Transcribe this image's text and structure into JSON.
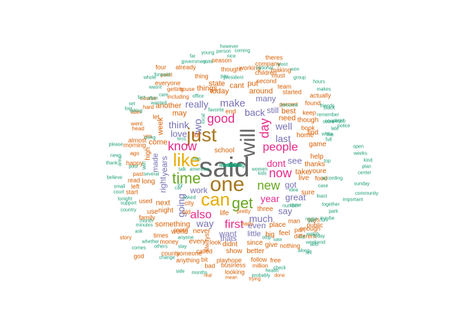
{
  "words": [
    {
      "text": "said",
      "c": "k"
    },
    {
      "text": "just",
      "c": "b"
    },
    {
      "text": "will",
      "c": "k"
    },
    {
      "text": "one",
      "c": "b"
    },
    {
      "text": "like",
      "c": "y"
    },
    {
      "text": "can",
      "c": "y"
    },
    {
      "text": "time",
      "c": "g"
    },
    {
      "text": "get",
      "c": "g"
    },
    {
      "text": "new",
      "c": "g"
    },
    {
      "text": "know",
      "c": "m"
    },
    {
      "text": "good",
      "c": "m"
    },
    {
      "text": "day",
      "c": "m"
    },
    {
      "text": "now",
      "c": "m"
    },
    {
      "text": "people",
      "c": "m"
    },
    {
      "text": "first",
      "c": "m"
    },
    {
      "text": "also",
      "c": "m"
    },
    {
      "text": "two",
      "c": "p"
    },
    {
      "text": "make",
      "c": "p"
    },
    {
      "text": "think",
      "c": "p"
    },
    {
      "text": "really",
      "c": "p"
    },
    {
      "text": "back",
      "c": "p"
    },
    {
      "text": "going",
      "c": "p"
    },
    {
      "text": "much",
      "c": "p"
    },
    {
      "text": "way",
      "c": "p"
    },
    {
      "text": "work",
      "c": "p"
    },
    {
      "text": "last",
      "c": "p"
    },
    {
      "text": "well",
      "c": "p"
    },
    {
      "text": "dont",
      "c": "m"
    },
    {
      "text": "year",
      "c": "m"
    },
    {
      "text": "see",
      "c": "p"
    },
    {
      "text": "great",
      "c": "p"
    },
    {
      "text": "say",
      "c": "p"
    },
    {
      "text": "got",
      "c": "p"
    },
    {
      "text": "love",
      "c": "p"
    },
    {
      "text": "years",
      "c": "p"
    },
    {
      "text": "right",
      "c": "p"
    },
    {
      "text": "made",
      "c": "p"
    },
    {
      "text": "want",
      "c": "p"
    },
    {
      "text": "even",
      "c": "p"
    },
    {
      "text": "many",
      "c": "p"
    },
    {
      "text": "still",
      "c": "p"
    },
    {
      "text": "thats",
      "c": "p"
    },
    {
      "text": "little",
      "c": "p"
    },
    {
      "text": "need",
      "c": "o"
    },
    {
      "text": "best",
      "c": "o"
    },
    {
      "text": "things",
      "c": "o"
    },
    {
      "text": "today",
      "c": "o"
    },
    {
      "text": "around",
      "c": "o"
    },
    {
      "text": "cant",
      "c": "o"
    },
    {
      "text": "state",
      "c": "o"
    },
    {
      "text": "put",
      "c": "o"
    },
    {
      "text": "another",
      "c": "o"
    },
    {
      "text": "may",
      "c": "o"
    },
    {
      "text": "come",
      "c": "o"
    },
    {
      "text": "week",
      "c": "o"
    },
    {
      "text": "next",
      "c": "o"
    },
    {
      "text": "night",
      "c": "o"
    },
    {
      "text": "something",
      "c": "o"
    },
    {
      "text": "world",
      "c": "o"
    },
    {
      "text": "never",
      "c": "o"
    },
    {
      "text": "every",
      "c": "o"
    },
    {
      "text": "didnt",
      "c": "o"
    },
    {
      "text": "since",
      "c": "o"
    },
    {
      "text": "give",
      "c": "o"
    },
    {
      "text": "show",
      "c": "o"
    },
    {
      "text": "better",
      "c": "o"
    },
    {
      "text": "three",
      "c": "o"
    },
    {
      "text": "place",
      "c": "o"
    },
    {
      "text": "feel",
      "c": "o"
    },
    {
      "text": "big",
      "c": "o"
    },
    {
      "text": "take",
      "c": "o"
    },
    {
      "text": "home",
      "c": "o"
    },
    {
      "text": "find",
      "c": "o"
    },
    {
      "text": "help",
      "c": "o"
    },
    {
      "text": "thanks",
      "c": "o"
    },
    {
      "text": "youre",
      "c": "o"
    },
    {
      "text": "live",
      "c": "o"
    },
    {
      "text": "sure",
      "c": "o"
    },
    {
      "text": "says",
      "c": "o"
    },
    {
      "text": "part",
      "c": "o"
    },
    {
      "text": "man",
      "c": "o"
    },
    {
      "text": "game",
      "c": "o"
    },
    {
      "text": "though",
      "c": "o"
    },
    {
      "text": "long",
      "c": "o"
    },
    {
      "text": "use",
      "c": "o"
    },
    {
      "text": "used",
      "c": "o"
    },
    {
      "text": "lot",
      "c": "o"
    },
    {
      "text": "life",
      "c": "o"
    },
    {
      "text": "school",
      "c": "o"
    },
    {
      "text": "end",
      "c": "o"
    },
    {
      "text": "city",
      "c": "o"
    },
    {
      "text": "look",
      "c": "o"
    },
    {
      "text": "money",
      "c": "o"
    },
    {
      "text": "times",
      "c": "o"
    },
    {
      "text": "room",
      "c": "o"
    },
    {
      "text": "keep",
      "c": "o"
    },
    {
      "text": "book",
      "c": "o"
    },
    {
      "text": "found",
      "c": "o"
    },
    {
      "text": "actually",
      "c": "o"
    },
    {
      "text": "started",
      "c": "o"
    },
    {
      "text": "team",
      "c": "o"
    },
    {
      "text": "second",
      "c": "o"
    },
    {
      "text": "high",
      "c": "o"
    },
    {
      "text": "always",
      "c": "o"
    },
    {
      "text": "old",
      "c": "o"
    },
    {
      "text": "let",
      "c": "o"
    },
    {
      "text": "play",
      "c": "o"
    },
    {
      "text": "bit",
      "c": "o"
    },
    {
      "text": "called",
      "c": "o"
    },
    {
      "text": "hope",
      "c": "o"
    },
    {
      "text": "looking",
      "c": "o"
    },
    {
      "text": "business",
      "c": "o"
    },
    {
      "text": "bad",
      "c": "o"
    },
    {
      "text": "anything",
      "c": "o"
    },
    {
      "text": "county",
      "c": "o"
    },
    {
      "text": "someone",
      "c": "o"
    },
    {
      "text": "follow",
      "c": "o"
    },
    {
      "text": "free",
      "c": "o"
    },
    {
      "text": "nothing",
      "c": "o"
    },
    {
      "text": "different",
      "c": "o"
    },
    {
      "text": "enough",
      "c": "o"
    },
    {
      "text": "public",
      "c": "o"
    },
    {
      "text": "food",
      "c": "o"
    },
    {
      "text": "read",
      "c": "o"
    },
    {
      "text": "family",
      "c": "o"
    },
    {
      "text": "four",
      "c": "o"
    },
    {
      "text": "already",
      "c": "o"
    },
    {
      "text": "thing",
      "c": "o"
    },
    {
      "text": "everyone",
      "c": "o"
    },
    {
      "text": "must",
      "c": "o"
    },
    {
      "text": "thought",
      "c": "o"
    },
    {
      "text": "season",
      "c": "o"
    },
    {
      "text": "working",
      "c": "o"
    },
    {
      "text": "children",
      "c": "o"
    },
    {
      "text": "making",
      "c": "o"
    },
    {
      "text": "company",
      "c": "o"
    },
    {
      "text": "theres",
      "c": "o"
    },
    {
      "text": "getting",
      "c": "o"
    },
    {
      "text": "house",
      "c": "o"
    },
    {
      "text": "including",
      "c": "o"
    },
    {
      "text": "almost",
      "c": "o"
    },
    {
      "text": "morning",
      "c": "o"
    },
    {
      "text": "happy",
      "c": "o"
    },
    {
      "text": "left",
      "c": "o"
    },
    {
      "text": "start",
      "c": "o"
    },
    {
      "text": "god",
      "c": "o"
    },
    {
      "text": "million",
      "c": "o"
    },
    {
      "text": "early",
      "c": "o"
    },
    {
      "text": "pretty",
      "c": "o"
    },
    {
      "text": "percent",
      "c": "o"
    },
    {
      "text": "point",
      "c": "o"
    },
    {
      "text": "course",
      "c": "o"
    },
    {
      "text": "later",
      "c": "o"
    },
    {
      "text": "went",
      "c": "o"
    },
    {
      "text": "hard",
      "c": "o"
    },
    {
      "text": "head",
      "c": "o"
    },
    {
      "text": "yes",
      "c": "o"
    },
    {
      "text": "ago",
      "c": "o"
    },
    {
      "text": "past",
      "c": "o"
    },
    {
      "text": "story",
      "c": "o"
    },
    {
      "text": "real",
      "c": "o"
    },
    {
      "text": "trying",
      "c": "o"
    },
    {
      "text": "done",
      "c": "o"
    },
    {
      "text": "mean",
      "c": "o"
    },
    {
      "text": "probably",
      "c": "t"
    },
    {
      "text": "health",
      "c": "t"
    },
    {
      "text": "check",
      "c": "t"
    },
    {
      "text": "months",
      "c": "t"
    },
    {
      "text": "side",
      "c": "t"
    },
    {
      "text": "stay",
      "c": "t"
    },
    {
      "text": "change",
      "c": "t"
    },
    {
      "text": "others",
      "c": "t"
    },
    {
      "text": "comes",
      "c": "t"
    },
    {
      "text": "whether",
      "c": "t"
    },
    {
      "text": "ask",
      "c": "t"
    },
    {
      "text": "minutes",
      "c": "t"
    },
    {
      "text": "month",
      "c": "t"
    },
    {
      "text": "country",
      "c": "t"
    },
    {
      "text": "tonight",
      "c": "t"
    },
    {
      "text": "support",
      "c": "t"
    },
    {
      "text": "court",
      "c": "t"
    },
    {
      "text": "small",
      "c": "t"
    },
    {
      "text": "believe",
      "c": "t"
    },
    {
      "text": "post",
      "c": "t"
    },
    {
      "text": "area",
      "c": "t"
    },
    {
      "text": "news",
      "c": "t"
    },
    {
      "text": "thank",
      "c": "t"
    },
    {
      "text": "please",
      "c": "t"
    },
    {
      "text": "several",
      "c": "t"
    },
    {
      "text": "talk",
      "c": "t"
    },
    {
      "text": "american",
      "c": "t"
    },
    {
      "text": "remember",
      "c": "t"
    },
    {
      "text": "couple",
      "c": "t"
    },
    {
      "text": "soon",
      "c": "t"
    },
    {
      "text": "late",
      "c": "t"
    },
    {
      "text": "full",
      "c": "t"
    },
    {
      "text": "white",
      "c": "t"
    },
    {
      "text": "open",
      "c": "t"
    },
    {
      "text": "weeks",
      "c": "t"
    },
    {
      "text": "kind",
      "c": "t"
    },
    {
      "text": "plan",
      "c": "t"
    },
    {
      "text": "center",
      "c": "t"
    },
    {
      "text": "top",
      "c": "t"
    },
    {
      "text": "sunday",
      "c": "t"
    },
    {
      "text": "community",
      "c": "t"
    },
    {
      "text": "important",
      "c": "t"
    },
    {
      "text": "together",
      "c": "t"
    },
    {
      "text": "park",
      "c": "t"
    },
    {
      "text": "fun",
      "c": "t"
    },
    {
      "text": "weekend",
      "c": "t"
    },
    {
      "text": "friday",
      "c": "t"
    },
    {
      "text": "maybe",
      "c": "t"
    },
    {
      "text": "least",
      "c": "t"
    },
    {
      "text": "according",
      "c": "t"
    },
    {
      "text": "case",
      "c": "t"
    },
    {
      "text": "five",
      "c": "t"
    },
    {
      "text": "black",
      "c": "t"
    },
    {
      "text": "job",
      "c": "t"
    },
    {
      "text": "police",
      "c": "t"
    },
    {
      "text": "water",
      "c": "t"
    },
    {
      "text": "friends",
      "c": "t"
    },
    {
      "text": "makes",
      "c": "t"
    },
    {
      "text": "hours",
      "c": "t"
    },
    {
      "text": "group",
      "c": "t"
    },
    {
      "text": "won",
      "c": "t"
    },
    {
      "text": "wont",
      "c": "t"
    },
    {
      "text": "national",
      "c": "t"
    },
    {
      "text": "coming",
      "c": "t"
    },
    {
      "text": "however",
      "c": "t"
    },
    {
      "text": "person",
      "c": "t"
    },
    {
      "text": "young",
      "c": "t"
    },
    {
      "text": "nice",
      "c": "t"
    },
    {
      "text": "far",
      "c": "t"
    },
    {
      "text": "government",
      "c": "t"
    },
    {
      "text": "quite",
      "c": "t"
    },
    {
      "text": "pay",
      "c": "t"
    },
    {
      "text": "president",
      "c": "t"
    },
    {
      "text": "forward",
      "c": "t"
    },
    {
      "text": "whole",
      "c": "t"
    },
    {
      "text": "wasnt",
      "c": "t"
    },
    {
      "text": "often",
      "c": "t"
    },
    {
      "text": "care",
      "c": "t"
    },
    {
      "text": "fact",
      "c": "t"
    },
    {
      "text": "set",
      "c": "t"
    },
    {
      "text": "lost",
      "c": "t"
    },
    {
      "text": "taking",
      "c": "t"
    },
    {
      "text": "wanted",
      "c": "t"
    },
    {
      "text": "using",
      "c": "t"
    },
    {
      "text": "less",
      "c": "t"
    },
    {
      "text": "office",
      "c": "t"
    },
    {
      "text": "favorite",
      "c": "t"
    },
    {
      "text": "become",
      "c": "t"
    },
    {
      "text": "anyone",
      "c": "t"
    },
    {
      "text": "try",
      "c": "t"
    },
    {
      "text": "car",
      "c": "t"
    },
    {
      "text": "kids",
      "c": "t"
    },
    {
      "text": "women",
      "c": "t"
    },
    {
      "text": "along",
      "c": "t"
    },
    {
      "text": "number",
      "c": "t"
    },
    {
      "text": "name",
      "c": "t"
    },
    {
      "text": "watch",
      "c": "t"
    },
    {
      "text": "tell",
      "c": "t"
    },
    {
      "text": "cut",
      "c": "t"
    },
    {
      "text": "add",
      "c": "t"
    },
    {
      "text": "stop",
      "c": "t"
    },
    {
      "text": "saw",
      "c": "t"
    },
    {
      "text": "came",
      "c": "t"
    },
    {
      "text": "idea",
      "c": "t"
    },
    {
      "text": "win",
      "c": "t"
    },
    {
      "text": "yet",
      "c": "t"
    },
    {
      "text": "asked",
      "c": "t"
    },
    {
      "text": "local",
      "c": "t"
    },
    {
      "text": "hes",
      "c": "t"
    },
    {
      "text": "available",
      "c": "t"
    },
    {
      "text": "everything",
      "c": "t"
    },
    {
      "text": "without",
      "c": "t"
    },
    {
      "text": "ive",
      "c": "t"
    },
    {
      "text": "lol",
      "c": "t"
    },
    {
      "text": "sim",
      "c": "t"
    },
    {
      "text": "life",
      "c": "t"
    }
  ]
}
